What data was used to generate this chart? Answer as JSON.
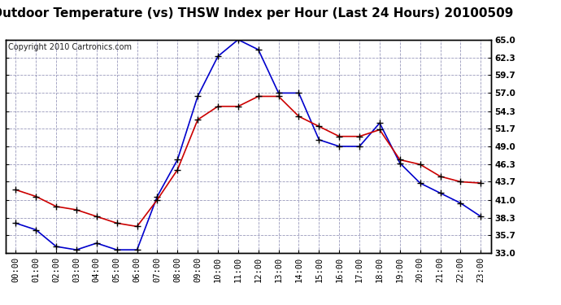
{
  "title": "Outdoor Temperature (vs) THSW Index per Hour (Last 24 Hours) 20100509",
  "copyright": "Copyright 2010 Cartronics.com",
  "hours": [
    "00:00",
    "01:00",
    "02:00",
    "03:00",
    "04:00",
    "05:00",
    "06:00",
    "07:00",
    "08:00",
    "09:00",
    "10:00",
    "11:00",
    "12:00",
    "13:00",
    "14:00",
    "15:00",
    "16:00",
    "17:00",
    "18:00",
    "19:00",
    "20:00",
    "21:00",
    "22:00",
    "23:00"
  ],
  "temp_red": [
    42.5,
    41.5,
    40.0,
    39.5,
    38.5,
    37.5,
    37.0,
    41.0,
    45.5,
    53.0,
    55.0,
    55.0,
    56.5,
    56.5,
    53.5,
    52.0,
    50.5,
    50.5,
    51.5,
    47.0,
    46.3,
    44.5,
    43.7,
    43.5
  ],
  "thsw_blue": [
    37.5,
    36.5,
    34.0,
    33.5,
    34.5,
    33.5,
    33.5,
    41.5,
    47.0,
    56.5,
    62.5,
    65.0,
    63.5,
    57.0,
    57.0,
    50.0,
    49.0,
    49.0,
    52.5,
    46.5,
    43.5,
    42.0,
    40.5,
    38.5
  ],
  "yticks": [
    33.0,
    35.7,
    38.3,
    41.0,
    43.7,
    46.3,
    49.0,
    51.7,
    54.3,
    57.0,
    59.7,
    62.3,
    65.0
  ],
  "ymin": 33.0,
  "ymax": 65.0,
  "bg_color": "#ffffff",
  "grid_color": "#9999bb",
  "line_red_color": "#cc0000",
  "line_blue_color": "#0000cc",
  "marker_color": "#000000",
  "title_fontsize": 11,
  "copyright_fontsize": 7,
  "tick_fontsize": 7.5,
  "border_color": "#000000"
}
